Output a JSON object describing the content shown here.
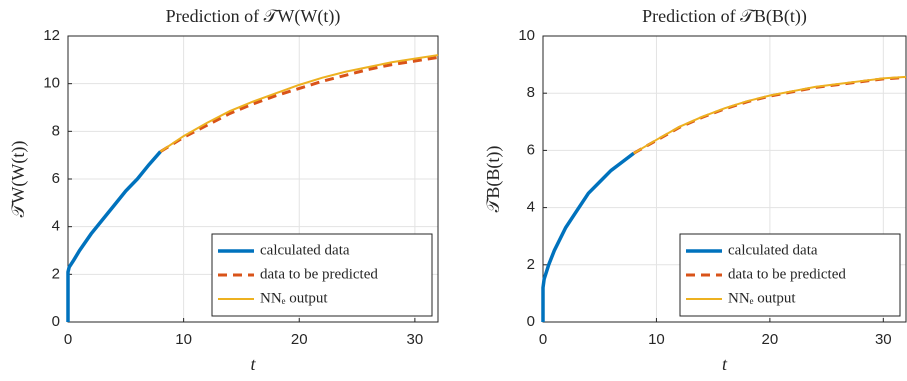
{
  "chart_data": [
    {
      "type": "line",
      "title": "Prediction of 𝒯W(W(t))",
      "xlabel": "t",
      "ylabel": "𝒯W(W(t))",
      "xlim": [
        0,
        32
      ],
      "xticks": [
        0,
        10,
        20,
        30
      ],
      "ylim": [
        0,
        12
      ],
      "yticks": [
        0,
        2,
        4,
        6,
        8,
        10,
        12
      ],
      "grid": true,
      "legend": "southeast",
      "series": [
        {
          "name": "calculated data",
          "color": "#0072BD",
          "style": "solid",
          "x": [
            0,
            0,
            0.1,
            0.5,
            1,
            2,
            3,
            4,
            5,
            6,
            7,
            8
          ],
          "values": [
            0,
            2.1,
            2.3,
            2.6,
            3.0,
            3.7,
            4.3,
            4.9,
            5.5,
            6.0,
            6.6,
            7.15
          ]
        },
        {
          "name": "data to be predicted",
          "color": "#D95319",
          "style": "dashed",
          "x": [
            8,
            10,
            12,
            14,
            16,
            18,
            20,
            22,
            24,
            26,
            28,
            30,
            32
          ],
          "values": [
            7.15,
            7.75,
            8.25,
            8.75,
            9.15,
            9.5,
            9.8,
            10.1,
            10.35,
            10.6,
            10.8,
            10.95,
            11.1
          ]
        },
        {
          "name": "NNₑ output",
          "color": "#EDB120",
          "style": "solid",
          "x": [
            8,
            10,
            12,
            14,
            16,
            18,
            20,
            22,
            24,
            26,
            28,
            30,
            32
          ],
          "values": [
            7.15,
            7.8,
            8.35,
            8.85,
            9.25,
            9.6,
            9.95,
            10.25,
            10.5,
            10.7,
            10.9,
            11.05,
            11.2
          ]
        }
      ]
    },
    {
      "type": "line",
      "title": "Prediction of 𝒯B(B(t))",
      "xlabel": "t",
      "ylabel": "𝒯B(B(t))",
      "xlim": [
        0,
        32
      ],
      "xticks": [
        0,
        10,
        20,
        30
      ],
      "ylim": [
        0,
        10
      ],
      "yticks": [
        0,
        2,
        4,
        6,
        8,
        10
      ],
      "grid": true,
      "legend": "southeast",
      "series": [
        {
          "name": "calculated data",
          "color": "#0072BD",
          "style": "solid",
          "x": [
            0,
            0,
            0.1,
            0.5,
            1,
            2,
            3,
            4,
            5,
            6,
            7,
            8
          ],
          "values": [
            0,
            1.2,
            1.5,
            2.0,
            2.5,
            3.3,
            3.9,
            4.5,
            4.9,
            5.3,
            5.6,
            5.9
          ]
        },
        {
          "name": "data to be predicted",
          "color": "#D95319",
          "style": "dashed",
          "x": [
            8,
            10,
            12,
            14,
            16,
            18,
            20,
            22,
            24,
            26,
            28,
            30,
            32
          ],
          "values": [
            5.9,
            6.35,
            6.8,
            7.15,
            7.45,
            7.7,
            7.9,
            8.05,
            8.2,
            8.3,
            8.4,
            8.5,
            8.55
          ]
        },
        {
          "name": "NNₑ output",
          "color": "#EDB120",
          "style": "solid",
          "x": [
            8,
            10,
            12,
            14,
            16,
            18,
            20,
            22,
            24,
            26,
            28,
            30,
            32
          ],
          "values": [
            5.9,
            6.37,
            6.82,
            7.17,
            7.47,
            7.72,
            7.92,
            8.07,
            8.22,
            8.32,
            8.42,
            8.52,
            8.57
          ]
        }
      ]
    }
  ]
}
